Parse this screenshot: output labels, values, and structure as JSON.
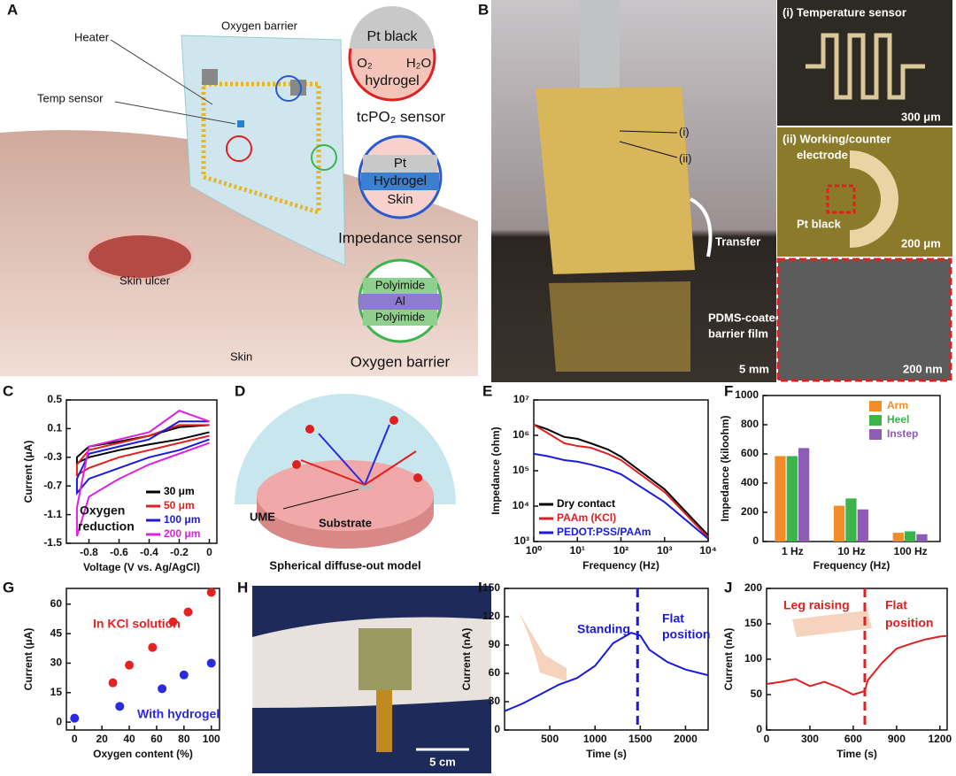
{
  "panel_labels": [
    "A",
    "B",
    "C",
    "D",
    "E",
    "F",
    "G",
    "H",
    "I",
    "J"
  ],
  "panel_a": {
    "heater": "Heater",
    "temp_sensor": "Temp sensor",
    "oxygen_barrier_top": "Oxygen barrier",
    "pt_black": "Pt black",
    "o2": "O₂",
    "h2o": "H₂O",
    "hydrogel": "hydrogel",
    "tcpo2": "tcPO₂ sensor",
    "pt": "Pt",
    "hydrogel2": "Hydrogel",
    "skin_layer": "Skin",
    "impedance": "Impedance sensor",
    "polyimide_top": "Polyimide",
    "al": "Al",
    "polyimide_bottom": "Polyimide",
    "oxygen_barrier": "Oxygen barrier",
    "skin_ulcer": "Skin ulcer",
    "skin": "Skin"
  },
  "panel_b": {
    "temp_sensor": "(i) Temperature sensor",
    "scale1": "300 μm",
    "electrode_1": "(ii) Working/counter",
    "electrode_2": "electrode",
    "pt_black": "Pt black",
    "scale2": "200 μm",
    "mark_i": "(i)",
    "mark_ii": "(ii)",
    "transfer": "Transfer",
    "film_1": "PDMS-coated",
    "film_2": "barrier film",
    "scale3": "5 mm",
    "scale4": "200 nm"
  },
  "panel_d": {
    "ume": "UME",
    "substrate": "Substrate",
    "caption": "Spherical diffuse-out model"
  },
  "panel_h": {
    "scale": "5 cm"
  },
  "chart_data": [
    {
      "type": "line",
      "xlabel": "Voltage (V vs. Ag/AgCl)",
      "ylabel": "Current (μA)",
      "xlim": [
        -0.95,
        0.05
      ],
      "ylim": [
        -1.5,
        0.5
      ],
      "xticks": [
        -0.8,
        -0.6,
        -0.4,
        -0.2,
        0
      ],
      "yticks": [
        0.5,
        0.1,
        -0.3,
        -0.7,
        -1.1,
        -1.5
      ],
      "legend": "lower right",
      "annotations": [
        {
          "text": "Oxygen",
          "color": "#111"
        },
        {
          "text": "reduction",
          "color": "#111"
        }
      ],
      "series": [
        {
          "name": "30 μm",
          "color": "#000000",
          "x": [
            0,
            -0.2,
            -0.4,
            -0.6,
            -0.8,
            -0.88,
            -0.88,
            -0.8,
            -0.6,
            -0.4,
            -0.2,
            0
          ],
          "values": [
            0.05,
            -0.05,
            -0.12,
            -0.2,
            -0.3,
            -0.38,
            -0.3,
            -0.15,
            -0.08,
            0.0,
            0.12,
            0.15
          ]
        },
        {
          "name": "50 μm",
          "color": "#e02020",
          "x": [
            0,
            -0.2,
            -0.4,
            -0.6,
            -0.8,
            -0.88,
            -0.88,
            -0.8,
            -0.6,
            -0.4,
            -0.2,
            0
          ],
          "values": [
            0.0,
            -0.1,
            -0.2,
            -0.3,
            -0.45,
            -0.55,
            -0.4,
            -0.2,
            -0.1,
            0.0,
            0.15,
            0.15
          ]
        },
        {
          "name": "100 μm",
          "color": "#1a1adf",
          "x": [
            0,
            -0.2,
            -0.4,
            -0.6,
            -0.8,
            -0.88,
            -0.88,
            -0.8,
            -0.6,
            -0.4,
            -0.2,
            0
          ],
          "values": [
            -0.05,
            -0.2,
            -0.3,
            -0.45,
            -0.6,
            -0.8,
            -0.6,
            -0.25,
            -0.15,
            -0.05,
            0.2,
            0.2
          ]
        },
        {
          "name": "200 μm",
          "color": "#e020e0",
          "x": [
            0,
            -0.2,
            -0.4,
            -0.6,
            -0.8,
            -0.88,
            -0.88,
            -0.8,
            -0.6,
            -0.4,
            -0.2,
            0
          ],
          "values": [
            -0.1,
            -0.25,
            -0.4,
            -0.6,
            -0.85,
            -1.4,
            -1.0,
            -0.15,
            -0.05,
            0.05,
            0.35,
            0.2
          ]
        }
      ]
    },
    {
      "type": "line",
      "log": true,
      "xlabel": "Frequency (Hz)",
      "ylabel": "Impedance (ohm)",
      "xlim": [
        1,
        10000
      ],
      "ylim": [
        1000,
        10000000
      ],
      "xticks": [
        {
          "value": 1,
          "label": "10⁰"
        },
        {
          "value": 10,
          "label": "10¹"
        },
        {
          "value": 100,
          "label": "10²"
        },
        {
          "value": 1000,
          "label": "10³"
        },
        {
          "value": 10000,
          "label": "10⁴"
        }
      ],
      "yticks": [
        {
          "value": 1000,
          "label": "10³"
        },
        {
          "value": 10000,
          "label": "10⁴"
        },
        {
          "value": 100000,
          "label": "10⁵"
        },
        {
          "value": 1000000,
          "label": "10⁶"
        },
        {
          "value": 10000000,
          "label": "10⁷"
        }
      ],
      "legend": "lower left",
      "x": [
        1,
        2,
        5,
        10,
        20,
        50,
        100,
        1000,
        10000
      ],
      "series": [
        {
          "name": "Dry contact",
          "color": "#000000",
          "values": [
            2000000,
            1500000,
            900000,
            800000,
            600000,
            400000,
            250000,
            30000,
            1500
          ]
        },
        {
          "name": "PAAm (KCl)",
          "color": "#e02020",
          "values": [
            2000000,
            1200000,
            600000,
            500000,
            450000,
            300000,
            200000,
            25000,
            1300
          ]
        },
        {
          "name": "PEDOT:PSS/PAAm",
          "color": "#1a1adf",
          "values": [
            300000,
            260000,
            200000,
            180000,
            150000,
            110000,
            80000,
            13000,
            1200
          ]
        }
      ]
    },
    {
      "type": "bar",
      "xlabel": "Frequency (Hz)",
      "ylabel": "Impedance (kiloohm)",
      "ylim": [
        0,
        1000
      ],
      "yticks": [
        0,
        200,
        400,
        600,
        800,
        1000
      ],
      "legend": "upper right",
      "categories": [
        "1 Hz",
        "10 Hz",
        "100 Hz"
      ],
      "series": [
        {
          "name": "Arm",
          "color": "#f28c28",
          "values": [
            585,
            245,
            60
          ]
        },
        {
          "name": "Heel",
          "color": "#3cb44b",
          "values": [
            585,
            295,
            70
          ]
        },
        {
          "name": "Instep",
          "color": "#8e5bb5",
          "values": [
            640,
            220,
            50
          ]
        }
      ]
    },
    {
      "type": "scatter",
      "xlabel": "Oxygen content (%)",
      "ylabel": "Current (μA)",
      "xlim": [
        -6,
        106
      ],
      "ylim": [
        -4,
        68
      ],
      "xticks": [
        0,
        20,
        40,
        60,
        80,
        100
      ],
      "yticks": [
        0,
        15,
        30,
        45,
        60
      ],
      "annotations": [
        {
          "text": "In KCl  solution",
          "color": "#e52222"
        },
        {
          "text": "With hydrogel",
          "color": "#2a2ae0"
        }
      ],
      "series": [
        {
          "name": "In KCl  solution",
          "color": "#e52222",
          "x": [
            28,
            40,
            57,
            72,
            83,
            100
          ],
          "values": [
            20,
            29,
            38,
            51,
            56,
            66
          ]
        },
        {
          "name": "With hydrogel",
          "color": "#2a2ae0",
          "x": [
            0,
            33,
            64,
            80,
            100
          ],
          "values": [
            2,
            8,
            17,
            24,
            30
          ]
        }
      ]
    },
    {
      "type": "line",
      "xlabel": "Time (s)",
      "ylabel": "Current (nA)",
      "xlim": [
        0,
        2250
      ],
      "ylim": [
        0,
        150
      ],
      "xticks": [
        500,
        1000,
        1500,
        2000
      ],
      "yticks": [
        0,
        30,
        60,
        90,
        120,
        150
      ],
      "marker_x": 1470,
      "marker_color": "#1a1adf",
      "annotations": [
        {
          "text": "Standing",
          "color": "#1a1adf"
        },
        {
          "text": "Flat",
          "color": "#1a1adf"
        },
        {
          "text": "position",
          "color": "#1a1adf"
        }
      ],
      "x": [
        0,
        200,
        400,
        600,
        800,
        1000,
        1200,
        1400,
        1500,
        1600,
        1800,
        2000,
        2250
      ],
      "series": [
        {
          "color": "#1a1adf",
          "values": [
            20,
            28,
            38,
            48,
            55,
            68,
            92,
            103,
            100,
            85,
            72,
            64,
            58
          ]
        }
      ]
    },
    {
      "type": "line",
      "xlabel": "Time (s)",
      "ylabel": "Current (nA)",
      "xlim": [
        0,
        1250
      ],
      "ylim": [
        0,
        200
      ],
      "xticks": [
        0,
        300,
        600,
        900,
        1200
      ],
      "yticks": [
        0,
        50,
        100,
        150,
        200
      ],
      "marker_x": 680,
      "marker_color": "#e02020",
      "annotations": [
        {
          "text": "Leg raising",
          "color": "#e02020"
        },
        {
          "text": "Flat",
          "color": "#e02020"
        },
        {
          "text": "position",
          "color": "#e02020"
        }
      ],
      "x": [
        0,
        100,
        200,
        300,
        400,
        500,
        600,
        680,
        700,
        800,
        900,
        1000,
        1100,
        1200,
        1250
      ],
      "series": [
        {
          "color": "#e02020",
          "values": [
            65,
            68,
            72,
            62,
            68,
            60,
            50,
            55,
            70,
            95,
            115,
            122,
            128,
            132,
            133
          ]
        }
      ]
    }
  ]
}
